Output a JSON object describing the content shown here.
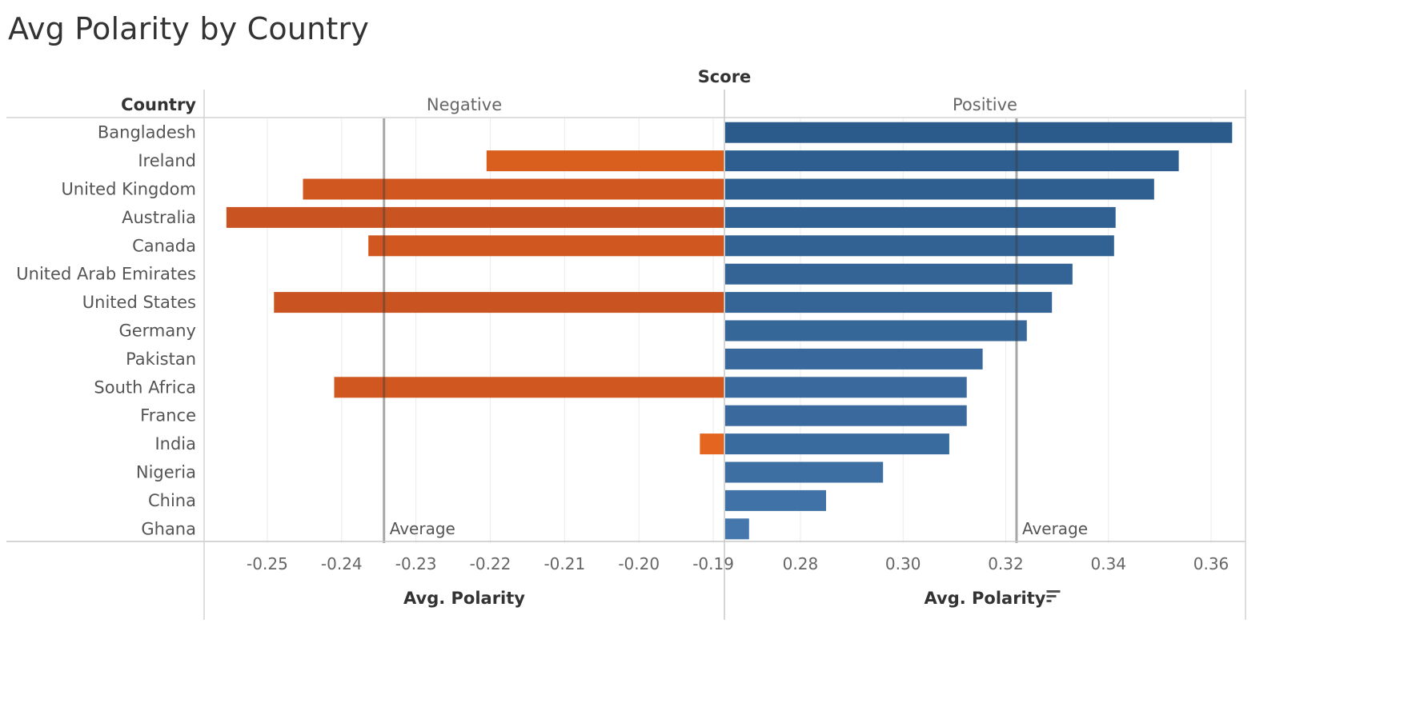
{
  "title": "Avg Polarity by Country",
  "chart_data": {
    "type": "bar",
    "orientation": "horizontal",
    "column_header": "Score",
    "row_header": "Country",
    "countries": [
      "Bangladesh",
      "Ireland",
      "United Kingdom",
      "Australia",
      "Canada",
      "United Arab Emirates",
      "United States",
      "Germany",
      "Pakistan",
      "South Africa",
      "France",
      "India",
      "Nigeria",
      "China",
      "Ghana"
    ],
    "panes": [
      {
        "name": "Negative",
        "xlabel": "Avg. Polarity",
        "xlim": [
          -0.2585,
          -0.1885
        ],
        "ticks": [
          -0.25,
          -0.24,
          -0.23,
          -0.22,
          -0.21,
          -0.2,
          -0.19
        ],
        "tick_labels": [
          "-0.25",
          "-0.24",
          "-0.23",
          "-0.22",
          "-0.21",
          "-0.20",
          "-0.19"
        ],
        "color": "#D95F1E",
        "values": [
          null,
          -0.2205,
          -0.2452,
          -0.2555,
          -0.2364,
          null,
          -0.2491,
          null,
          null,
          -0.241,
          null,
          -0.1918,
          null,
          null,
          null
        ],
        "average": -0.2343,
        "average_label": "Average"
      },
      {
        "name": "Positive",
        "xlabel": "Avg. Polarity",
        "sort_icon": "sort-descending-icon",
        "xlim": [
          0.2652,
          0.3667
        ],
        "ticks": [
          0.28,
          0.3,
          0.32,
          0.34,
          0.36
        ],
        "tick_labels": [
          "0.28",
          "0.30",
          "0.32",
          "0.34",
          "0.36"
        ],
        "color": "#2E6295",
        "values": [
          0.3641,
          0.3537,
          0.3489,
          0.3414,
          0.3411,
          0.333,
          0.329,
          0.3241,
          0.3155,
          0.3124,
          0.3124,
          0.309,
          0.2961,
          0.285,
          0.27
        ],
        "average": 0.3221,
        "average_label": "Average"
      }
    ],
    "grid": true
  }
}
